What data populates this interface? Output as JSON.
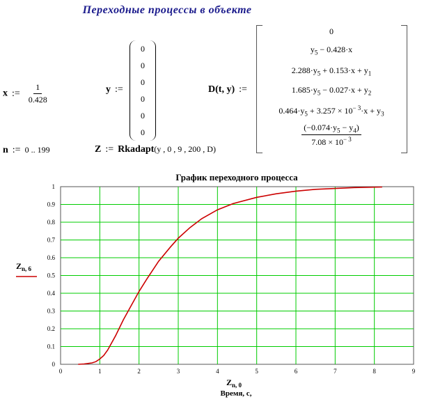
{
  "header": {
    "title": "Переходные  процессы  в  объекте"
  },
  "defs": {
    "x_def": {
      "name": "x",
      "op": ":=",
      "num": "1",
      "den": "0.428"
    },
    "y_def": {
      "name": "y",
      "op": ":=",
      "values": [
        "0",
        "0",
        "0",
        "0",
        "0",
        "0"
      ]
    },
    "d_def": {
      "name": "D",
      "args": "(t, y)",
      "op": ":=",
      "rows": [
        {
          "a": "0"
        },
        {
          "a": "y",
          "a_sub": "5",
          "b": " − 0.428·x"
        },
        {
          "a": "2.288·y",
          "a_sub": "5",
          "b": " + 0.153·x + y",
          "b_sub": "1"
        },
        {
          "a": "1.685·y",
          "a_sub": "5",
          "b": " − 0.027·x + y",
          "b_sub": "2"
        },
        {
          "a": "0.464·y",
          "a_sub": "5",
          "b": " + 3.257 × 10",
          "b_sup": "− 3",
          "c": "·x + y",
          "c_sub": "3"
        }
      ],
      "last_num_a": "(−0.074·y",
      "last_num_a_sub": "5",
      "last_num_b": " − y",
      "last_num_b_sub": "4",
      "last_num_c": ")",
      "last_den": "7.08 × 10",
      "last_den_sup": "− 3"
    },
    "n_def": {
      "name": "n",
      "op": ":=",
      "range": "0 .. 199"
    },
    "z_def": {
      "name": "Z",
      "op": ":=",
      "call": "Rkadapt",
      "args": "(y , 0 , 9 , 200 , D)"
    }
  },
  "chart_data": {
    "type": "line",
    "title": "График переходного процесса",
    "xlabel": "Z",
    "xlabel_sub": "n, 0",
    "xlabel2": "Время, с,",
    "ylabel": "Z",
    "ylabel_sub": "n, 6",
    "xlim": [
      0,
      9
    ],
    "ylim": [
      0,
      1
    ],
    "xticks": [
      "0",
      "1",
      "2",
      "3",
      "4",
      "5",
      "6",
      "7",
      "8",
      "9"
    ],
    "yticks": [
      "0",
      "0.1",
      "0.2",
      "0.3",
      "0.4",
      "0.5",
      "0.6",
      "0.7",
      "0.8",
      "0.9",
      "1"
    ],
    "grid": true,
    "grid_color": "#00cc00",
    "series": [
      {
        "color": "#cc0000",
        "x": [
          0.45,
          0.6,
          0.8,
          0.9,
          1.0,
          1.1,
          1.2,
          1.4,
          1.6,
          1.8,
          2.0,
          2.2,
          2.5,
          2.8,
          3.0,
          3.3,
          3.6,
          4.0,
          4.4,
          5.0,
          5.5,
          6.0,
          6.5,
          7.0,
          7.5,
          8.2
        ],
        "y": [
          0.0,
          0.002,
          0.008,
          0.015,
          0.03,
          0.05,
          0.08,
          0.16,
          0.25,
          0.33,
          0.41,
          0.48,
          0.58,
          0.66,
          0.71,
          0.77,
          0.82,
          0.87,
          0.905,
          0.94,
          0.96,
          0.975,
          0.985,
          0.99,
          0.995,
          0.998
        ]
      }
    ]
  }
}
